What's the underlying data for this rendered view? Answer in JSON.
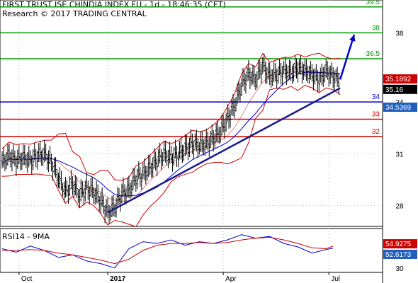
{
  "header": {
    "title": "FIRST TRUST ISE CHINDIA INDEX FU - 1d - 18:46:35 (CET)",
    "subtitle": "Research © 2017 TRADING CENTRAL"
  },
  "rsi_label": "RSI14 - 9MA",
  "colors": {
    "price": "#000000",
    "bollinger": "#cc0000",
    "moving_average": "#0000cc",
    "trendline": "#1a1a8c",
    "support": "#0000cc",
    "resistance": "#cc0000",
    "target": "#009900",
    "price_label_bg": "#000000",
    "upper_band_label_bg": "#cc0000",
    "lower_band_label_bg": "#1f5fbf",
    "rsi_ma_label_bg": "#cc0000",
    "rsi_label_bg": "#1f5fbf"
  },
  "chart_data": [
    {
      "type": "line",
      "title": "FIRST TRUST ISE CHINDIA INDEX FU - 1d - 18:46:35 (CET)",
      "x_tick_labels": [
        "Oct",
        "2017",
        "Apr",
        "Jul"
      ],
      "y_tick_labels": [
        "28",
        "31",
        "34",
        "38"
      ],
      "ylim": [
        26.8,
        39.9
      ],
      "grid": true,
      "horizontal_levels": [
        {
          "label": "39.5",
          "value": 39.5,
          "kind": "target"
        },
        {
          "label": "38",
          "value": 38,
          "kind": "target"
        },
        {
          "label": "36.5",
          "value": 36.5,
          "kind": "target"
        },
        {
          "label": "34",
          "value": 34,
          "kind": "support"
        },
        {
          "label": "33",
          "value": 33,
          "kind": "resistance"
        },
        {
          "label": "32",
          "value": 32,
          "kind": "resistance"
        }
      ],
      "value_labels": [
        {
          "label": "35.1892",
          "value": 35.1892,
          "kind": "upper_band"
        },
        {
          "label": "35.16",
          "value": 35.16,
          "kind": "price"
        },
        {
          "label": "34.5369",
          "value": 34.5369,
          "kind": "lower_band"
        }
      ],
      "price_series": {
        "name": "",
        "x": [
          0,
          5,
          10,
          15,
          20,
          25,
          30,
          35,
          40,
          45,
          50,
          55,
          60,
          65,
          70,
          75,
          80,
          85,
          90,
          95,
          100,
          105,
          110,
          115,
          120,
          125,
          130,
          135,
          140,
          145,
          150,
          155,
          160,
          165,
          170,
          175,
          180,
          185,
          190,
          195,
          200,
          205,
          210,
          215,
          220,
          225,
          230,
          235,
          240
        ],
        "values": [
          30.5,
          30.9,
          30.6,
          30.8,
          30.6,
          30.9,
          31.0,
          30.5,
          29.6,
          28.8,
          29.3,
          28.6,
          29.0,
          28.8,
          28.3,
          27.6,
          27.9,
          28.7,
          28.9,
          29.6,
          29.8,
          30.2,
          30.6,
          31.0,
          30.8,
          31.0,
          31.3,
          31.6,
          31.5,
          31.6,
          31.9,
          32.3,
          33.0,
          33.8,
          35.0,
          35.6,
          35.3,
          36.1,
          35.5,
          35.6,
          35.8,
          35.7,
          36.0,
          35.8,
          35.6,
          35.3,
          35.8,
          35.5,
          35.2
        ]
      },
      "trendline": {
        "x": [
          75,
          240
        ],
        "values": [
          27.6,
          34.8
        ]
      },
      "forecast_arrow": {
        "x": [
          240,
          250
        ],
        "values": [
          35.3,
          37.9
        ]
      }
    },
    {
      "type": "line",
      "title": "RSI14 - 9MA",
      "x_tick_labels": [
        "Oct",
        "2017",
        "Apr",
        "Jul"
      ],
      "y_tick_labels": [
        "30"
      ],
      "ylim": [
        25,
        75
      ],
      "value_labels": [
        {
          "label": "54.9275",
          "value": 54.9275,
          "kind": "rsi_ma"
        },
        {
          "label": "52.6173",
          "value": 52.6173,
          "kind": "rsi"
        }
      ],
      "series": [
        {
          "name": "RSI14",
          "x": [
            0,
            10,
            20,
            30,
            40,
            50,
            60,
            70,
            80,
            90,
            100,
            110,
            120,
            130,
            140,
            150,
            160,
            170,
            180,
            190,
            200,
            210,
            220,
            230,
            235
          ],
          "values": [
            52,
            48,
            55,
            50,
            42,
            45,
            38,
            35,
            30,
            52,
            60,
            58,
            62,
            56,
            60,
            58,
            62,
            68,
            64,
            66,
            58,
            54,
            47,
            51,
            52.6
          ]
        },
        {
          "name": "9MA",
          "x": [
            0,
            10,
            20,
            30,
            40,
            50,
            60,
            70,
            80,
            90,
            100,
            110,
            120,
            130,
            140,
            150,
            160,
            170,
            180,
            190,
            200,
            210,
            220,
            230,
            235
          ],
          "values": [
            50,
            50,
            51,
            50,
            47,
            45,
            42,
            39,
            35,
            40,
            50,
            56,
            58,
            58,
            59,
            58,
            59,
            62,
            64,
            65,
            62,
            58,
            53,
            52,
            54.9
          ]
        }
      ]
    }
  ]
}
